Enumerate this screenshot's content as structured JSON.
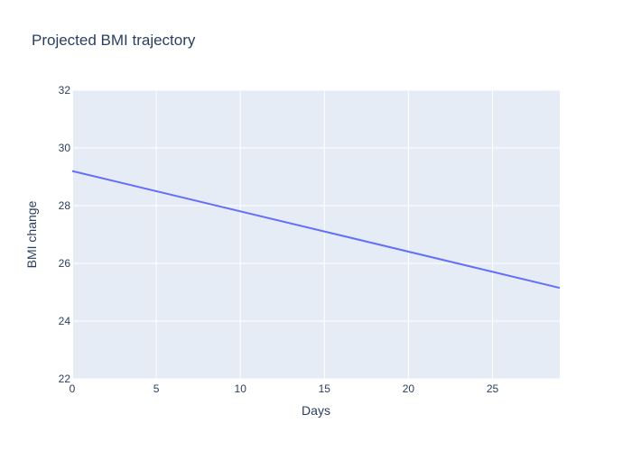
{
  "chart_data": {
    "type": "line",
    "title": "Projected BMI trajectory",
    "xlabel": "Days",
    "ylabel": "BMI change",
    "xlim": [
      0,
      29
    ],
    "ylim": [
      22,
      32
    ],
    "x_ticks": [
      0,
      5,
      10,
      15,
      20,
      25
    ],
    "y_ticks": [
      22,
      24,
      26,
      28,
      30,
      32
    ],
    "grid": true,
    "legend": "none",
    "plot_bgcolor": "#e5ecf6",
    "grid_color": "#ffffff",
    "text_color": "#2a3f5f",
    "series": [
      {
        "color": "#636efa",
        "x": [
          0,
          29
        ],
        "y": [
          29.2,
          25.15
        ]
      }
    ]
  }
}
